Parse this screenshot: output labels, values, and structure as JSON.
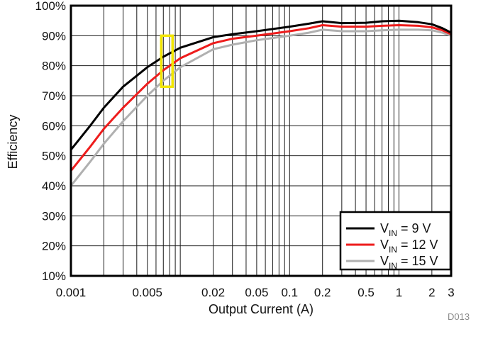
{
  "colors": {
    "vin9": "#000000",
    "vin12": "#ee1c1c",
    "vin15": "#b0b0b0",
    "highlight": "#f2e600",
    "grid": "#1a1a1a"
  },
  "chart_data": {
    "type": "line",
    "xscale": "log",
    "xlim": [
      0.001,
      3
    ],
    "ylim": [
      10,
      100
    ],
    "grid": true,
    "legend_position": "bottom-right",
    "xlabel": "Output Current (A)",
    "ylabel": "Efficiency",
    "corner_code": "D013",
    "x_ticks": [
      {
        "v": 0.001,
        "label": "0.001"
      },
      {
        "v": 0.005,
        "label": "0.005"
      },
      {
        "v": 0.02,
        "label": "0.02"
      },
      {
        "v": 0.05,
        "label": "0.05"
      },
      {
        "v": 0.1,
        "label": "0.1"
      },
      {
        "v": 0.2,
        "label": "0.2"
      },
      {
        "v": 0.5,
        "label": "0.5"
      },
      {
        "v": 1,
        "label": "1"
      },
      {
        "v": 2,
        "label": "2"
      },
      {
        "v": 3,
        "label": "3"
      }
    ],
    "y_ticks": [
      {
        "v": 10,
        "label": "10%"
      },
      {
        "v": 20,
        "label": "20%"
      },
      {
        "v": 30,
        "label": "30%"
      },
      {
        "v": 40,
        "label": "40%"
      },
      {
        "v": 50,
        "label": "50%"
      },
      {
        "v": 60,
        "label": "60%"
      },
      {
        "v": 70,
        "label": "70%"
      },
      {
        "v": 80,
        "label": "80%"
      },
      {
        "v": 90,
        "label": "90%"
      },
      {
        "v": 100,
        "label": "100%"
      }
    ],
    "highlight_box": {
      "x_range": [
        0.0067,
        0.0085
      ],
      "y_range": [
        73,
        90
      ]
    },
    "series": [
      {
        "name": "V_IN = 9 V",
        "label_main": "V",
        "label_sub": "IN",
        "label_rest": " = 9 V",
        "color_key": "vin9",
        "points": [
          [
            0.001,
            52
          ],
          [
            0.0015,
            60
          ],
          [
            0.002,
            66
          ],
          [
            0.003,
            73
          ],
          [
            0.005,
            79.5
          ],
          [
            0.007,
            83
          ],
          [
            0.01,
            86
          ],
          [
            0.02,
            89.5
          ],
          [
            0.03,
            90.5
          ],
          [
            0.05,
            91.5
          ],
          [
            0.1,
            93
          ],
          [
            0.15,
            94
          ],
          [
            0.2,
            94.8
          ],
          [
            0.3,
            94.2
          ],
          [
            0.5,
            94.3
          ],
          [
            0.7,
            94.8
          ],
          [
            1,
            95
          ],
          [
            1.5,
            94.5
          ],
          [
            2,
            93.8
          ],
          [
            2.5,
            92.5
          ],
          [
            3,
            91
          ]
        ]
      },
      {
        "name": "V_IN = 12 V",
        "label_main": "V",
        "label_sub": "IN",
        "label_rest": " = 12 V",
        "color_key": "vin12",
        "points": [
          [
            0.001,
            45
          ],
          [
            0.0015,
            53
          ],
          [
            0.002,
            59
          ],
          [
            0.003,
            66
          ],
          [
            0.005,
            74
          ],
          [
            0.007,
            78.5
          ],
          [
            0.01,
            82.5
          ],
          [
            0.02,
            87.5
          ],
          [
            0.03,
            89
          ],
          [
            0.05,
            90
          ],
          [
            0.1,
            91.5
          ],
          [
            0.15,
            92.5
          ],
          [
            0.2,
            93.5
          ],
          [
            0.3,
            93
          ],
          [
            0.5,
            93
          ],
          [
            0.7,
            93.3
          ],
          [
            1,
            93.5
          ],
          [
            1.5,
            93.3
          ],
          [
            2,
            92.8
          ],
          [
            2.5,
            91.8
          ],
          [
            3,
            90.5
          ]
        ]
      },
      {
        "name": "V_IN = 15 V",
        "label_main": "V",
        "label_sub": "IN",
        "label_rest": " = 15 V",
        "color_key": "vin15",
        "points": [
          [
            0.001,
            40
          ],
          [
            0.0015,
            48
          ],
          [
            0.002,
            54
          ],
          [
            0.003,
            61.5
          ],
          [
            0.005,
            70
          ],
          [
            0.007,
            75
          ],
          [
            0.01,
            79.5
          ],
          [
            0.02,
            85.5
          ],
          [
            0.03,
            87
          ],
          [
            0.05,
            88.5
          ],
          [
            0.1,
            90
          ],
          [
            0.15,
            91
          ],
          [
            0.2,
            92
          ],
          [
            0.3,
            91.5
          ],
          [
            0.5,
            91.5
          ],
          [
            0.7,
            91.8
          ],
          [
            1,
            92
          ],
          [
            1.5,
            92
          ],
          [
            2,
            91.8
          ],
          [
            2.5,
            91
          ],
          [
            3,
            90
          ]
        ]
      }
    ]
  }
}
